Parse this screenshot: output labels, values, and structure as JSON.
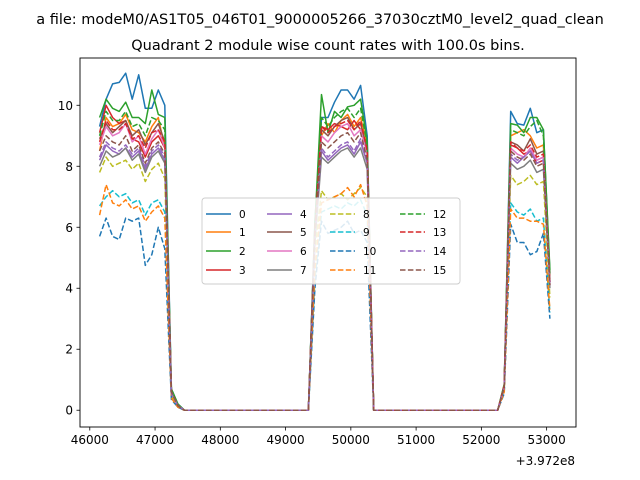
{
  "figure": {
    "suptitle": "a file: modeM0/AS1T05_046T01_9000005266_37030cztM0_level2_quad_clean",
    "title": "Quadrant 2 module wise count rates with 100.0s bins."
  },
  "chart_data": {
    "type": "line",
    "title": "Quadrant 2 module wise count rates with 100.0s bins.",
    "xlabel": "",
    "ylabel": "",
    "x_offset_label": "+3.972e8",
    "xlim": [
      45850,
      53450
    ],
    "ylim": [
      -0.55,
      11.55
    ],
    "xticks": [
      46000,
      47000,
      48000,
      49000,
      50000,
      51000,
      52000,
      53000
    ],
    "yticks": [
      0,
      2,
      4,
      6,
      8,
      10
    ],
    "grid": false,
    "legend": {
      "placement": "center-left",
      "ncol": 4
    },
    "x": [
      46150,
      46250,
      46350,
      46450,
      46550,
      46650,
      46750,
      46850,
      46950,
      47050,
      47150,
      47250,
      47350,
      47450,
      49350,
      49450,
      49550,
      49650,
      49750,
      49850,
      49950,
      50050,
      50150,
      50250,
      50350,
      52250,
      52350,
      52450,
      52550,
      52650,
      52750,
      52850,
      52950,
      53050
    ],
    "series": [
      {
        "name": "0",
        "color": "#1f77b4",
        "dash": "solid",
        "values": [
          9.3,
          10.2,
          10.7,
          10.75,
          11.05,
          10.2,
          11.0,
          9.9,
          9.9,
          10.5,
          10.0,
          0.7,
          0.2,
          0,
          0,
          6.2,
          9.6,
          9.6,
          10.1,
          10.5,
          10.5,
          10.2,
          10.65,
          9.0,
          0,
          0,
          0.8,
          9.8,
          9.4,
          9.35,
          9.9,
          9.1,
          9.2,
          4.5
        ]
      },
      {
        "name": "1",
        "color": "#ff7f0e",
        "dash": "solid",
        "values": [
          8.5,
          9.6,
          9.3,
          9.4,
          9.7,
          9.2,
          9.1,
          8.8,
          9.3,
          9.6,
          8.6,
          0.6,
          0.15,
          0,
          0,
          5.9,
          9.0,
          9.4,
          9.1,
          9.5,
          9.7,
          9.3,
          9.6,
          8.7,
          0,
          0,
          0.8,
          9.0,
          9.1,
          9.2,
          9.0,
          8.6,
          8.7,
          4.3
        ]
      },
      {
        "name": "2",
        "color": "#2ca02c",
        "dash": "solid",
        "values": [
          9.6,
          10.2,
          9.9,
          9.8,
          10.1,
          9.6,
          9.6,
          9.4,
          10.5,
          9.7,
          9.6,
          0.7,
          0.2,
          0,
          0,
          6.1,
          10.35,
          9.1,
          9.8,
          9.6,
          9.95,
          10.0,
          10.2,
          8.8,
          0,
          0,
          0.85,
          9.4,
          9.35,
          9.1,
          9.6,
          9.6,
          9.2,
          4.6
        ]
      },
      {
        "name": "3",
        "color": "#d62728",
        "dash": "solid",
        "values": [
          9.1,
          10.0,
          9.6,
          9.4,
          9.5,
          8.9,
          8.8,
          8.3,
          8.8,
          9.0,
          8.6,
          0.6,
          0.15,
          0,
          0,
          5.9,
          9.3,
          9.2,
          9.4,
          9.3,
          9.2,
          9.5,
          9.2,
          8.6,
          0,
          0,
          0.8,
          8.7,
          8.6,
          8.4,
          8.5,
          8.1,
          8.2,
          4.2
        ]
      },
      {
        "name": "4",
        "color": "#9467bd",
        "dash": "solid",
        "values": [
          8.2,
          8.7,
          8.5,
          8.4,
          8.6,
          8.3,
          8.5,
          7.9,
          8.4,
          8.6,
          8.2,
          0.6,
          0.15,
          0,
          0,
          5.6,
          8.5,
          8.2,
          8.4,
          8.6,
          8.7,
          8.4,
          8.8,
          8.1,
          0,
          0,
          0.7,
          8.3,
          8.1,
          8.3,
          8.5,
          8.2,
          8.3,
          4.1
        ]
      },
      {
        "name": "5",
        "color": "#8c564b",
        "dash": "solid",
        "values": [
          8.9,
          9.4,
          9.1,
          9.3,
          9.5,
          9.0,
          9.2,
          8.7,
          9.1,
          9.4,
          8.8,
          0.6,
          0.15,
          0,
          0,
          5.8,
          9.2,
          9.0,
          9.3,
          9.5,
          9.6,
          9.2,
          9.4,
          8.5,
          0,
          0,
          0.75,
          8.8,
          8.7,
          8.5,
          8.9,
          8.4,
          8.5,
          4.2
        ]
      },
      {
        "name": "6",
        "color": "#e377c2",
        "dash": "solid",
        "values": [
          8.7,
          9.3,
          9.0,
          9.1,
          9.4,
          8.8,
          9.0,
          8.4,
          8.9,
          9.2,
          8.6,
          0.6,
          0.15,
          0,
          0,
          5.7,
          9.0,
          8.8,
          9.1,
          9.3,
          9.4,
          9.0,
          9.2,
          8.4,
          0,
          0,
          0.75,
          8.6,
          8.4,
          8.3,
          8.6,
          8.2,
          8.3,
          4.1
        ]
      },
      {
        "name": "7",
        "color": "#7f7f7f",
        "dash": "solid",
        "values": [
          8.0,
          8.5,
          8.3,
          8.4,
          8.6,
          8.2,
          8.4,
          7.8,
          8.3,
          8.5,
          8.1,
          0.55,
          0.15,
          0,
          0,
          5.5,
          8.3,
          8.1,
          8.3,
          8.5,
          8.6,
          8.3,
          8.6,
          7.9,
          0,
          0,
          0.7,
          8.1,
          7.9,
          8.0,
          8.2,
          7.8,
          7.9,
          4.0
        ]
      },
      {
        "name": "8",
        "color": "#bcbd22",
        "dash": "dashed",
        "values": [
          7.8,
          8.3,
          8.0,
          8.1,
          8.2,
          7.9,
          8.1,
          7.5,
          7.9,
          8.1,
          7.6,
          0.5,
          0.1,
          0,
          0,
          5.2,
          7.2,
          6.9,
          7.0,
          7.1,
          6.9,
          7.1,
          7.3,
          7.0,
          0,
          0,
          0.7,
          7.7,
          7.4,
          7.5,
          7.7,
          7.4,
          7.5,
          3.7
        ]
      },
      {
        "name": "9",
        "color": "#17becf",
        "dash": "dashed",
        "values": [
          6.7,
          7.0,
          7.2,
          7.0,
          7.1,
          6.8,
          6.9,
          6.4,
          6.8,
          6.9,
          6.5,
          0.4,
          0.1,
          0,
          0,
          4.3,
          6.5,
          6.6,
          6.7,
          6.6,
          6.8,
          6.7,
          6.9,
          6.4,
          0,
          0,
          0.6,
          6.8,
          6.5,
          6.4,
          6.6,
          6.2,
          6.3,
          3.2
        ]
      },
      {
        "name": "10",
        "color": "#1f77b4",
        "dash": "dashed",
        "values": [
          5.7,
          6.3,
          5.7,
          5.6,
          6.3,
          6.2,
          6.3,
          4.75,
          5.1,
          6.0,
          5.3,
          0.35,
          0.1,
          0,
          0,
          4.0,
          6.2,
          5.8,
          5.9,
          6.0,
          6.2,
          5.8,
          5.9,
          5.5,
          0,
          0,
          0.55,
          6.1,
          5.5,
          5.5,
          5.1,
          5.2,
          5.8,
          3.0
        ]
      },
      {
        "name": "11",
        "color": "#ff7f0e",
        "dash": "dashed",
        "values": [
          6.4,
          7.4,
          6.8,
          6.7,
          6.9,
          6.6,
          6.7,
          6.2,
          6.5,
          6.7,
          6.3,
          0.4,
          0.1,
          0,
          0,
          4.6,
          6.8,
          6.9,
          7.0,
          7.1,
          7.3,
          7.0,
          7.4,
          6.7,
          0,
          0,
          0.6,
          6.6,
          6.3,
          6.3,
          6.2,
          6.2,
          6.1,
          3.3
        ]
      },
      {
        "name": "12",
        "color": "#2ca02c",
        "dash": "dashed",
        "values": [
          9.0,
          9.8,
          9.5,
          9.5,
          9.8,
          9.3,
          9.4,
          9.0,
          9.6,
          9.5,
          9.2,
          0.65,
          0.15,
          0,
          0,
          6.0,
          9.6,
          9.3,
          9.6,
          9.8,
          9.9,
          9.6,
          9.9,
          8.7,
          0,
          0,
          0.8,
          9.2,
          9.1,
          9.0,
          9.3,
          9.5,
          9.0,
          4.4
        ]
      },
      {
        "name": "13",
        "color": "#d62728",
        "dash": "dashed",
        "values": [
          8.8,
          9.5,
          9.2,
          9.2,
          9.4,
          8.9,
          9.0,
          8.6,
          9.1,
          9.2,
          8.8,
          0.6,
          0.15,
          0,
          0,
          5.9,
          9.3,
          9.1,
          9.3,
          9.4,
          9.5,
          9.2,
          9.5,
          8.5,
          0,
          0,
          0.8,
          8.8,
          8.6,
          8.5,
          8.7,
          8.3,
          8.4,
          4.2
        ]
      },
      {
        "name": "14",
        "color": "#9467bd",
        "dash": "dashed",
        "values": [
          8.3,
          8.8,
          8.6,
          8.5,
          8.7,
          8.4,
          8.6,
          8.0,
          8.5,
          8.7,
          8.3,
          0.55,
          0.15,
          0,
          0,
          5.6,
          8.6,
          8.3,
          8.5,
          8.7,
          8.8,
          8.5,
          8.9,
          8.1,
          0,
          0,
          0.75,
          8.4,
          8.2,
          8.3,
          8.5,
          8.1,
          8.2,
          4.1
        ]
      },
      {
        "name": "15",
        "color": "#8c564b",
        "dash": "dashed",
        "values": [
          8.5,
          9.0,
          8.8,
          8.7,
          9.0,
          8.5,
          8.7,
          8.1,
          8.6,
          8.8,
          8.4,
          0.6,
          0.15,
          0,
          0,
          5.7,
          8.8,
          8.6,
          8.8,
          9.0,
          9.1,
          8.8,
          9.1,
          8.2,
          0,
          0,
          0.75,
          8.5,
          8.3,
          8.2,
          8.4,
          8.0,
          8.1,
          4.1
        ]
      }
    ]
  }
}
